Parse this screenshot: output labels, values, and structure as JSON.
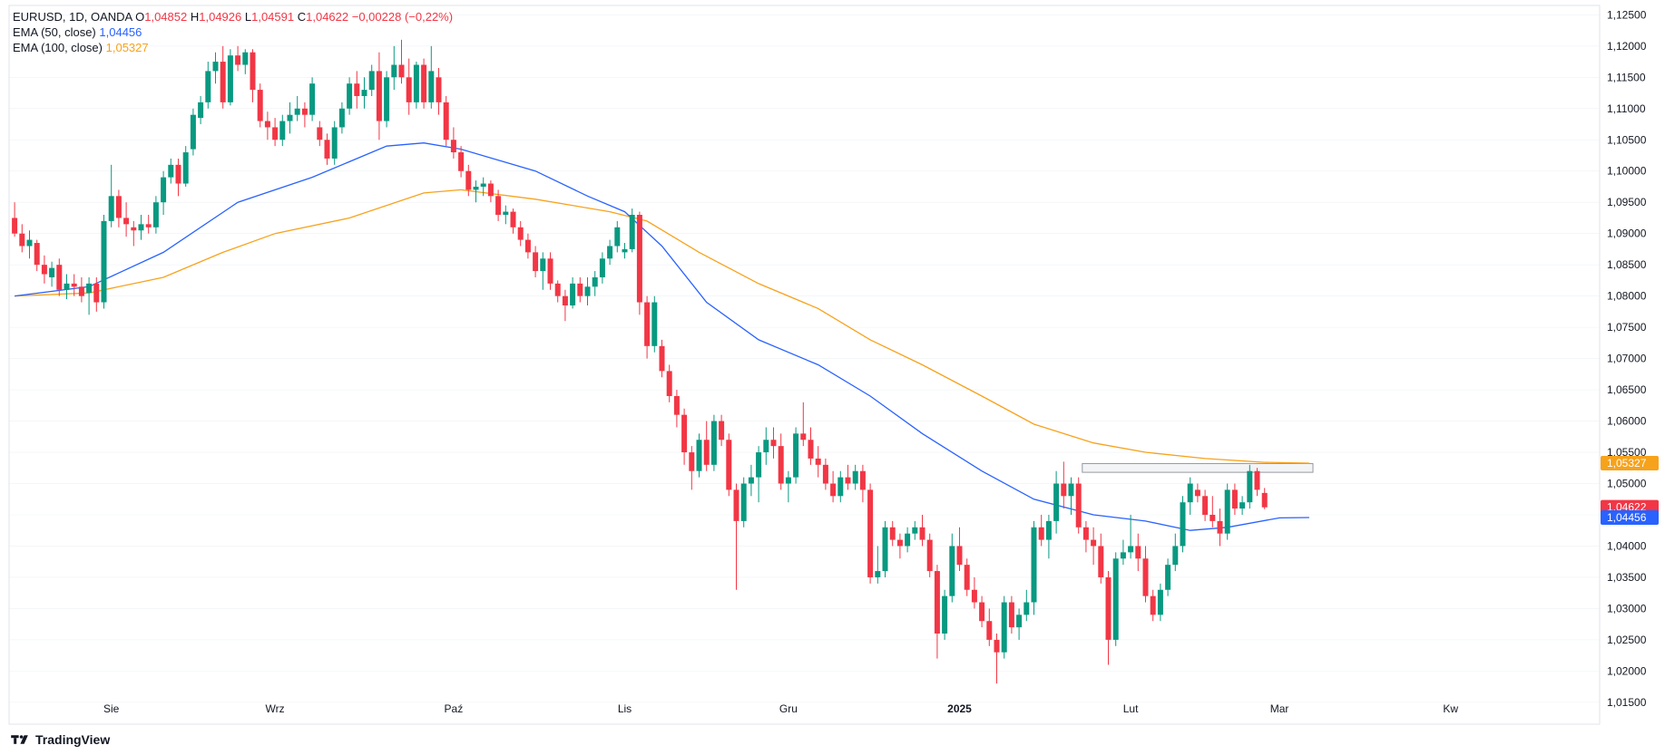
{
  "legend": {
    "symbol": "EURUSD, 1D, OANDA",
    "o_label": "O",
    "o_value": "1,04852",
    "h_label": "H",
    "h_value": "1,04926",
    "l_label": "L",
    "l_value": "1,04591",
    "c_label": "C",
    "c_value": "1,04622",
    "change": "−0,00228 (−0,22%)",
    "ema50_label": "EMA (50, close)",
    "ema50_value": "1,04456",
    "ema100_label": "EMA (100, close)",
    "ema100_value": "1,05327"
  },
  "branding": {
    "name": "TradingView"
  },
  "colors": {
    "up": "#089981",
    "down": "#f23645",
    "ema50": "#2962ff",
    "ema100": "#f7a21b",
    "grid": "#e0e3eb",
    "axis_text": "#131722"
  },
  "chart_data": {
    "type": "candlestick",
    "y_axis": {
      "min": 1.0115,
      "max": 1.1265,
      "tick_labels": [
        "1,01500",
        "1,02000",
        "1,02500",
        "1,03000",
        "1,03500",
        "1,04000",
        "1,04500",
        "1,05000",
        "1,05500",
        "1,06000",
        "1,06500",
        "1,07000",
        "1,07500",
        "1,08000",
        "1,08500",
        "1,09000",
        "1,09500",
        "1,10000",
        "1,10500",
        "1,11000",
        "1,11500",
        "1,12000",
        "1,12500"
      ],
      "tick_values": [
        1.015,
        1.02,
        1.025,
        1.03,
        1.035,
        1.04,
        1.045,
        1.05,
        1.055,
        1.06,
        1.065,
        1.07,
        1.075,
        1.08,
        1.085,
        1.09,
        1.095,
        1.1,
        1.105,
        1.11,
        1.115,
        1.12,
        1.125
      ]
    },
    "x_axis": {
      "labels": [
        {
          "text": "Sie",
          "bar": 13,
          "bold": false
        },
        {
          "text": "Wrz",
          "bar": 35,
          "bold": false
        },
        {
          "text": "Paź",
          "bar": 59,
          "bold": false
        },
        {
          "text": "Lis",
          "bar": 82,
          "bold": false
        },
        {
          "text": "Gru",
          "bar": 104,
          "bold": false
        },
        {
          "text": "2025",
          "bar": 127,
          "bold": true
        },
        {
          "text": "Lut",
          "bar": 150,
          "bold": false
        },
        {
          "text": "Mar",
          "bar": 170,
          "bold": false
        },
        {
          "text": "Kw",
          "bar": 193,
          "bold": false
        }
      ],
      "total_slots": 198
    },
    "price_labels": [
      {
        "text": "1,05327",
        "value": 1.05327,
        "color": "#f7a21b"
      },
      {
        "text": "1,04622",
        "value": 1.04622,
        "color": "#f23645"
      },
      {
        "text": "1,04456",
        "value": 1.04456,
        "color": "#2962ff"
      }
    ],
    "resistance_zone": {
      "from_bar": 144,
      "to_bar": 175,
      "low": 1.0518,
      "high": 1.0532
    },
    "candles": [
      [
        1.0925,
        1.095,
        1.0895,
        1.09
      ],
      [
        1.09,
        1.0915,
        1.087,
        1.088
      ],
      [
        1.088,
        1.0905,
        1.086,
        1.089
      ],
      [
        1.0885,
        1.089,
        1.084,
        1.085
      ],
      [
        1.085,
        1.0865,
        1.082,
        1.0835
      ],
      [
        1.083,
        1.0855,
        1.0815,
        1.0845
      ],
      [
        1.085,
        1.086,
        1.08,
        1.081
      ],
      [
        1.081,
        1.0835,
        1.0795,
        1.082
      ],
      [
        1.082,
        1.0835,
        1.08,
        1.0815
      ],
      [
        1.0815,
        1.083,
        1.079,
        1.08
      ],
      [
        1.0805,
        1.083,
        1.077,
        1.082
      ],
      [
        1.082,
        1.083,
        1.0775,
        1.079
      ],
      [
        1.079,
        1.093,
        1.078,
        1.092
      ],
      [
        1.092,
        1.101,
        1.091,
        1.096
      ],
      [
        1.096,
        1.097,
        1.091,
        1.0925
      ],
      [
        1.0925,
        1.095,
        1.0895,
        1.0915
      ],
      [
        1.091,
        1.092,
        1.088,
        1.0905
      ],
      [
        1.0905,
        1.093,
        1.089,
        1.0915
      ],
      [
        1.0915,
        1.093,
        1.09,
        1.091
      ],
      [
        1.091,
        1.096,
        1.09,
        1.095
      ],
      [
        1.095,
        1.1,
        1.093,
        1.099
      ],
      [
        1.099,
        1.102,
        1.098,
        1.101
      ],
      [
        1.101,
        1.102,
        1.096,
        1.098
      ],
      [
        1.098,
        1.104,
        1.0975,
        1.103
      ],
      [
        1.1035,
        1.11,
        1.1025,
        1.109
      ],
      [
        1.1085,
        1.112,
        1.1075,
        1.111
      ],
      [
        1.111,
        1.1175,
        1.11,
        1.116
      ],
      [
        1.116,
        1.119,
        1.114,
        1.1175
      ],
      [
        1.1175,
        1.12,
        1.11,
        1.111
      ],
      [
        1.111,
        1.1195,
        1.1105,
        1.1185
      ],
      [
        1.1185,
        1.12,
        1.116,
        1.117
      ],
      [
        1.117,
        1.1195,
        1.1155,
        1.119
      ],
      [
        1.119,
        1.1195,
        1.111,
        1.113
      ],
      [
        1.113,
        1.114,
        1.107,
        1.108
      ],
      [
        1.108,
        1.1095,
        1.105,
        1.107
      ],
      [
        1.107,
        1.1085,
        1.104,
        1.105
      ],
      [
        1.105,
        1.109,
        1.104,
        1.108
      ],
      [
        1.108,
        1.111,
        1.106,
        1.109
      ],
      [
        1.109,
        1.112,
        1.108,
        1.11
      ],
      [
        1.11,
        1.111,
        1.107,
        1.109
      ],
      [
        1.109,
        1.115,
        1.108,
        1.114
      ],
      [
        1.107,
        1.108,
        1.104,
        1.105
      ],
      [
        1.105,
        1.106,
        1.101,
        1.102
      ],
      [
        1.102,
        1.108,
        1.101,
        1.107
      ],
      [
        1.107,
        1.111,
        1.106,
        1.11
      ],
      [
        1.11,
        1.115,
        1.109,
        1.114
      ],
      [
        1.114,
        1.116,
        1.11,
        1.112
      ],
      [
        1.112,
        1.115,
        1.11,
        1.113
      ],
      [
        1.113,
        1.117,
        1.112,
        1.116
      ],
      [
        1.116,
        1.119,
        1.105,
        1.108
      ],
      [
        1.108,
        1.116,
        1.107,
        1.115
      ],
      [
        1.115,
        1.12,
        1.113,
        1.117
      ],
      [
        1.117,
        1.121,
        1.114,
        1.115
      ],
      [
        1.115,
        1.118,
        1.109,
        1.111
      ],
      [
        1.111,
        1.1175,
        1.11,
        1.117
      ],
      [
        1.117,
        1.118,
        1.11,
        1.111
      ],
      [
        1.111,
        1.12,
        1.11,
        1.116
      ],
      [
        1.115,
        1.1165,
        1.109,
        1.111
      ],
      [
        1.111,
        1.112,
        1.104,
        1.105
      ],
      [
        1.105,
        1.107,
        1.102,
        1.103
      ],
      [
        1.103,
        1.104,
        1.099,
        1.1
      ],
      [
        1.1,
        1.101,
        1.096,
        1.097
      ],
      [
        1.097,
        1.0985,
        1.095,
        1.0975
      ],
      [
        1.0975,
        1.099,
        1.096,
        1.098
      ],
      [
        1.098,
        1.0985,
        1.095,
        1.096
      ],
      [
        1.096,
        1.097,
        1.092,
        1.093
      ],
      [
        1.093,
        1.0945,
        1.0915,
        1.0935
      ],
      [
        1.0935,
        1.094,
        1.09,
        1.091
      ],
      [
        1.091,
        1.092,
        1.088,
        1.089
      ],
      [
        1.089,
        1.09,
        1.086,
        1.087
      ],
      [
        1.087,
        1.088,
        1.083,
        1.084
      ],
      [
        1.084,
        1.087,
        1.081,
        1.086
      ],
      [
        1.086,
        1.087,
        1.081,
        1.082
      ],
      [
        1.082,
        1.0825,
        1.079,
        1.08
      ],
      [
        1.08,
        1.081,
        1.076,
        1.0785
      ],
      [
        1.0785,
        1.083,
        1.078,
        1.082
      ],
      [
        1.082,
        1.083,
        1.079,
        1.08
      ],
      [
        1.08,
        1.083,
        1.0785,
        1.0815
      ],
      [
        1.0815,
        1.084,
        1.08,
        1.083
      ],
      [
        1.083,
        1.087,
        1.082,
        1.086
      ],
      [
        1.086,
        1.089,
        1.085,
        1.088
      ],
      [
        1.088,
        1.092,
        1.087,
        1.091
      ],
      [
        1.087,
        1.0885,
        1.086,
        1.0875
      ],
      [
        1.0875,
        1.094,
        1.087,
        1.093
      ],
      [
        1.093,
        1.0935,
        1.077,
        1.079
      ],
      [
        1.079,
        1.08,
        1.07,
        1.072
      ],
      [
        1.072,
        1.08,
        1.071,
        1.079
      ],
      [
        1.072,
        1.073,
        1.067,
        1.068
      ],
      [
        1.068,
        1.069,
        1.063,
        1.064
      ],
      [
        1.064,
        1.065,
        1.059,
        1.061
      ],
      [
        1.061,
        1.062,
        1.053,
        1.055
      ],
      [
        1.055,
        1.056,
        1.049,
        1.052
      ],
      [
        1.052,
        1.058,
        1.051,
        1.057
      ],
      [
        1.057,
        1.06,
        1.052,
        1.053
      ],
      [
        1.053,
        1.061,
        1.052,
        1.06
      ],
      [
        1.06,
        1.061,
        1.056,
        1.057
      ],
      [
        1.057,
        1.058,
        1.048,
        1.049
      ],
      [
        1.049,
        1.05,
        1.033,
        1.044
      ],
      [
        1.044,
        1.051,
        1.043,
        1.05
      ],
      [
        1.05,
        1.053,
        1.048,
        1.051
      ],
      [
        1.051,
        1.056,
        1.047,
        1.055
      ],
      [
        1.055,
        1.059,
        1.053,
        1.057
      ],
      [
        1.057,
        1.059,
        1.054,
        1.056
      ],
      [
        1.056,
        1.058,
        1.049,
        1.05
      ],
      [
        1.05,
        1.052,
        1.047,
        1.051
      ],
      [
        1.051,
        1.059,
        1.05,
        1.058
      ],
      [
        1.058,
        1.063,
        1.056,
        1.057
      ],
      [
        1.057,
        1.059,
        1.053,
        1.054
      ],
      [
        1.054,
        1.056,
        1.051,
        1.053
      ],
      [
        1.053,
        1.054,
        1.049,
        1.05
      ],
      [
        1.05,
        1.052,
        1.047,
        1.048
      ],
      [
        1.048,
        1.052,
        1.047,
        1.051
      ],
      [
        1.051,
        1.053,
        1.049,
        1.05
      ],
      [
        1.05,
        1.053,
        1.049,
        1.052
      ],
      [
        1.052,
        1.053,
        1.047,
        1.049
      ],
      [
        1.049,
        1.05,
        1.034,
        1.035
      ],
      [
        1.035,
        1.04,
        1.034,
        1.036
      ],
      [
        1.036,
        1.044,
        1.035,
        1.043
      ],
      [
        1.043,
        1.044,
        1.04,
        1.041
      ],
      [
        1.041,
        1.042,
        1.038,
        1.04
      ],
      [
        1.04,
        1.043,
        1.039,
        1.042
      ],
      [
        1.042,
        1.044,
        1.041,
        1.043
      ],
      [
        1.043,
        1.045,
        1.04,
        1.041
      ],
      [
        1.041,
        1.042,
        1.035,
        1.036
      ],
      [
        1.036,
        1.037,
        1.022,
        1.026
      ],
      [
        1.026,
        1.033,
        1.025,
        1.032
      ],
      [
        1.032,
        1.042,
        1.031,
        1.04
      ],
      [
        1.04,
        1.043,
        1.036,
        1.037
      ],
      [
        1.037,
        1.038,
        1.032,
        1.033
      ],
      [
        1.033,
        1.035,
        1.03,
        1.031
      ],
      [
        1.031,
        1.032,
        1.027,
        1.028
      ],
      [
        1.028,
        1.03,
        1.024,
        1.025
      ],
      [
        1.025,
        1.026,
        1.018,
        1.023
      ],
      [
        1.023,
        1.032,
        1.022,
        1.031
      ],
      [
        1.031,
        1.032,
        1.026,
        1.027
      ],
      [
        1.027,
        1.03,
        1.025,
        1.029
      ],
      [
        1.029,
        1.033,
        1.028,
        1.031
      ],
      [
        1.031,
        1.044,
        1.029,
        1.043
      ],
      [
        1.043,
        1.045,
        1.04,
        1.041
      ],
      [
        1.041,
        1.045,
        1.038,
        1.044
      ],
      [
        1.044,
        1.052,
        1.042,
        1.05
      ],
      [
        1.05,
        1.0535,
        1.046,
        1.048
      ],
      [
        1.048,
        1.051,
        1.045,
        1.05
      ],
      [
        1.05,
        1.051,
        1.042,
        1.043
      ],
      [
        1.043,
        1.044,
        1.039,
        1.041
      ],
      [
        1.041,
        1.043,
        1.037,
        1.04
      ],
      [
        1.04,
        1.042,
        1.034,
        1.035
      ],
      [
        1.035,
        1.036,
        1.021,
        1.025
      ],
      [
        1.025,
        1.039,
        1.024,
        1.038
      ],
      [
        1.038,
        1.041,
        1.037,
        1.039
      ],
      [
        1.039,
        1.045,
        1.038,
        1.04
      ],
      [
        1.04,
        1.042,
        1.036,
        1.038
      ],
      [
        1.038,
        1.04,
        1.031,
        1.032
      ],
      [
        1.032,
        1.033,
        1.028,
        1.029
      ],
      [
        1.029,
        1.034,
        1.028,
        1.033
      ],
      [
        1.033,
        1.038,
        1.032,
        1.037
      ],
      [
        1.037,
        1.042,
        1.036,
        1.04
      ],
      [
        1.04,
        1.048,
        1.039,
        1.047
      ],
      [
        1.047,
        1.051,
        1.045,
        1.05
      ],
      [
        1.049,
        1.05,
        1.047,
        1.048
      ],
      [
        1.048,
        1.049,
        1.044,
        1.045
      ],
      [
        1.045,
        1.048,
        1.043,
        1.044
      ],
      [
        1.044,
        1.046,
        1.04,
        1.042
      ],
      [
        1.042,
        1.05,
        1.041,
        1.049
      ],
      [
        1.049,
        1.05,
        1.045,
        1.046
      ],
      [
        1.046,
        1.048,
        1.045,
        1.047
      ],
      [
        1.047,
        1.053,
        1.046,
        1.052
      ],
      [
        1.052,
        1.0525,
        1.048,
        1.049
      ],
      [
        1.0485,
        1.0493,
        1.0459,
        1.0462
      ]
    ],
    "ema50_points": [
      [
        0,
        1.08
      ],
      [
        10,
        1.0815
      ],
      [
        20,
        1.087
      ],
      [
        30,
        1.095
      ],
      [
        40,
        1.099
      ],
      [
        50,
        1.104
      ],
      [
        55,
        1.1045
      ],
      [
        60,
        1.1035
      ],
      [
        70,
        1.1
      ],
      [
        77,
        1.096
      ],
      [
        82,
        1.0935
      ],
      [
        87,
        1.088
      ],
      [
        93,
        1.079
      ],
      [
        100,
        1.073
      ],
      [
        108,
        1.069
      ],
      [
        115,
        1.064
      ],
      [
        122,
        1.058
      ],
      [
        130,
        1.052
      ],
      [
        137,
        1.0475
      ],
      [
        145,
        1.045
      ],
      [
        152,
        1.044
      ],
      [
        158,
        1.0425
      ],
      [
        163,
        1.043
      ],
      [
        170,
        1.0445
      ],
      [
        174,
        1.04456
      ]
    ],
    "ema100_points": [
      [
        0,
        1.08
      ],
      [
        10,
        1.0805
      ],
      [
        20,
        1.083
      ],
      [
        28,
        1.087
      ],
      [
        35,
        1.09
      ],
      [
        45,
        1.0925
      ],
      [
        55,
        1.0965
      ],
      [
        60,
        1.097
      ],
      [
        70,
        1.0955
      ],
      [
        80,
        1.0935
      ],
      [
        85,
        1.092
      ],
      [
        92,
        1.087
      ],
      [
        100,
        1.082
      ],
      [
        108,
        1.078
      ],
      [
        115,
        1.073
      ],
      [
        122,
        1.069
      ],
      [
        130,
        1.064
      ],
      [
        137,
        1.0595
      ],
      [
        145,
        1.0565
      ],
      [
        152,
        1.055
      ],
      [
        160,
        1.054
      ],
      [
        168,
        1.0534
      ],
      [
        174,
        1.05327
      ]
    ]
  }
}
